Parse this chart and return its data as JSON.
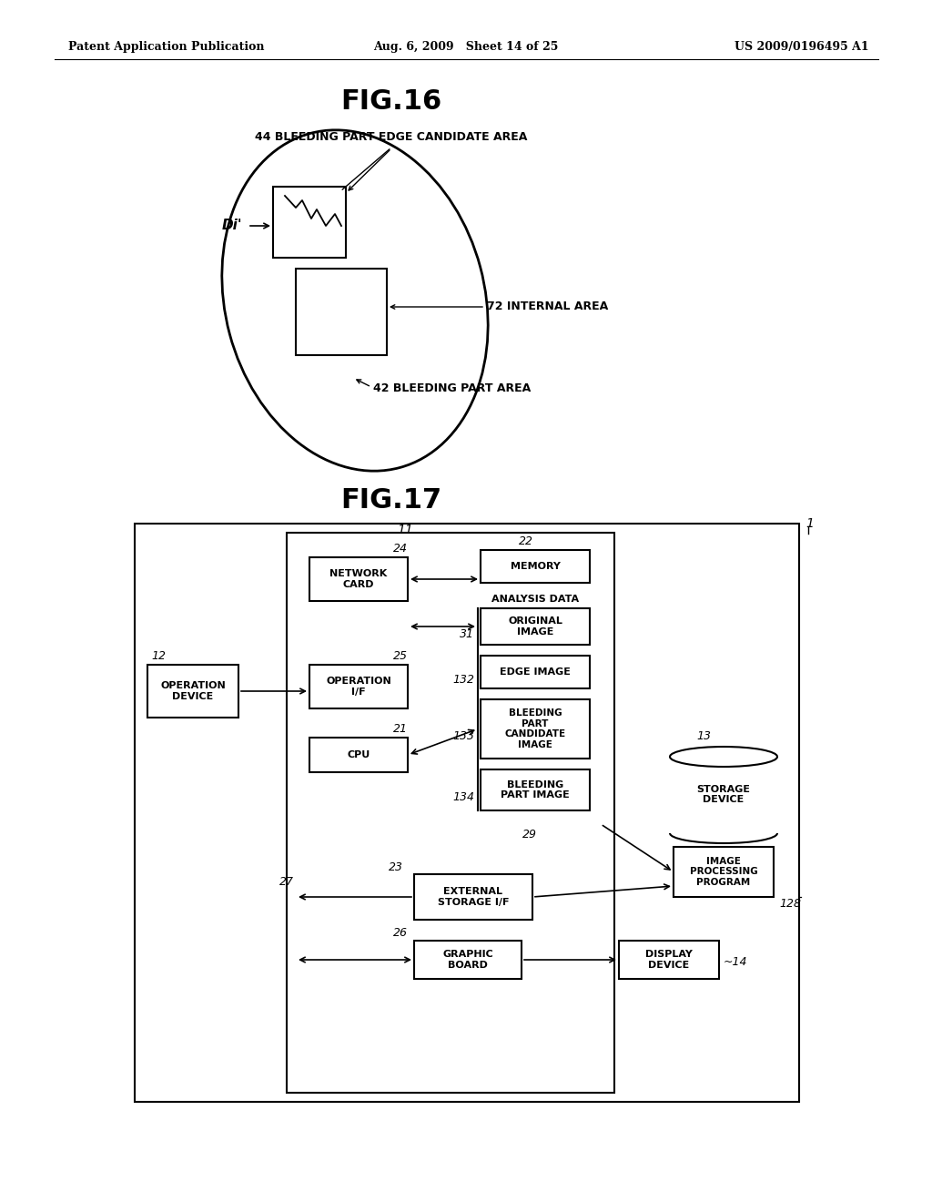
{
  "header_left": "Patent Application Publication",
  "header_center": "Aug. 6, 2009   Sheet 14 of 25",
  "header_right": "US 2009/0196495 A1",
  "fig16_title": "FIG.16",
  "fig17_title": "FIG.17",
  "bg_color": "#ffffff",
  "text_color": "#000000",
  "label_44": "44 BLEEDING PART EDGE CANDIDATE AREA",
  "label_72": "72 INTERNAL AREA",
  "label_42": "42 BLEEDING PART AREA",
  "label_Di": "Di'",
  "label_11": "11",
  "label_1": "1",
  "label_22": "22",
  "label_24": "24",
  "label_25": "25",
  "label_12": "12",
  "label_21": "21",
  "label_31": "31",
  "label_132": "132",
  "label_133": "133",
  "label_134": "134",
  "label_29": "29",
  "label_23": "23",
  "label_27": "27",
  "label_26": "26",
  "label_13": "13",
  "label_128": "128",
  "label_14": "14"
}
